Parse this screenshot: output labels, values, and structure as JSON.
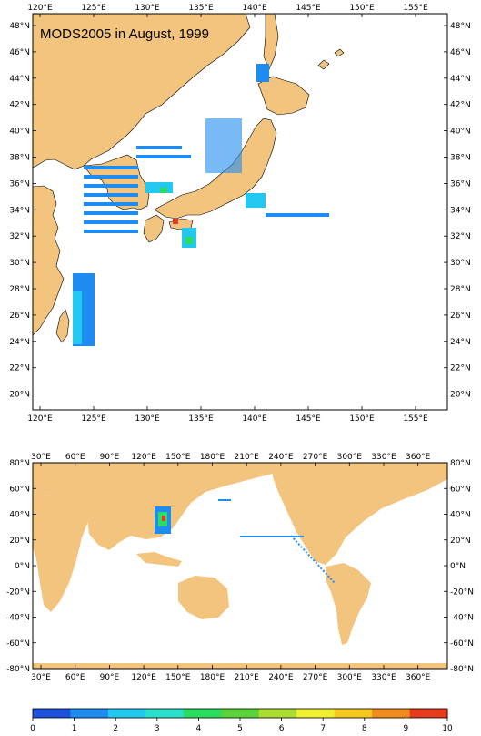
{
  "map_top": {
    "title": "MODS2005 in August, 1999",
    "lon_labels": [
      "120°E",
      "125°E",
      "130°E",
      "135°E",
      "140°E",
      "145°E",
      "150°E",
      "155°E"
    ],
    "lat_labels": [
      "48°N",
      "46°N",
      "44°N",
      "42°N",
      "40°N",
      "38°N",
      "36°N",
      "34°N",
      "32°N",
      "30°N",
      "28°N",
      "26°N",
      "24°N",
      "22°N",
      "20°N"
    ]
  },
  "map_bottom": {
    "lon_labels": [
      "30°E",
      "60°E",
      "90°E",
      "120°E",
      "150°E",
      "180°E",
      "210°E",
      "240°E",
      "270°E",
      "300°E",
      "330°E",
      "360°E"
    ],
    "lat_labels": [
      "80°N",
      "60°N",
      "40°N",
      "20°N",
      "0°N",
      "-20°N",
      "-40°N",
      "-60°N",
      "-80°N"
    ]
  },
  "colorbar": {
    "labels": [
      "0",
      "1",
      "2",
      "3",
      "4",
      "5",
      "6",
      "7",
      "8",
      "9",
      "10"
    ],
    "colors": [
      "#1e50dc",
      "#1e8cf0",
      "#23c8f0",
      "#2be0c8",
      "#2adc60",
      "#5ad23a",
      "#aadc32",
      "#f0f032",
      "#f5c81e",
      "#f08c1e",
      "#e63c1e"
    ]
  },
  "colors": {
    "land": "#f2c47e",
    "ocean": "#ffffff"
  }
}
